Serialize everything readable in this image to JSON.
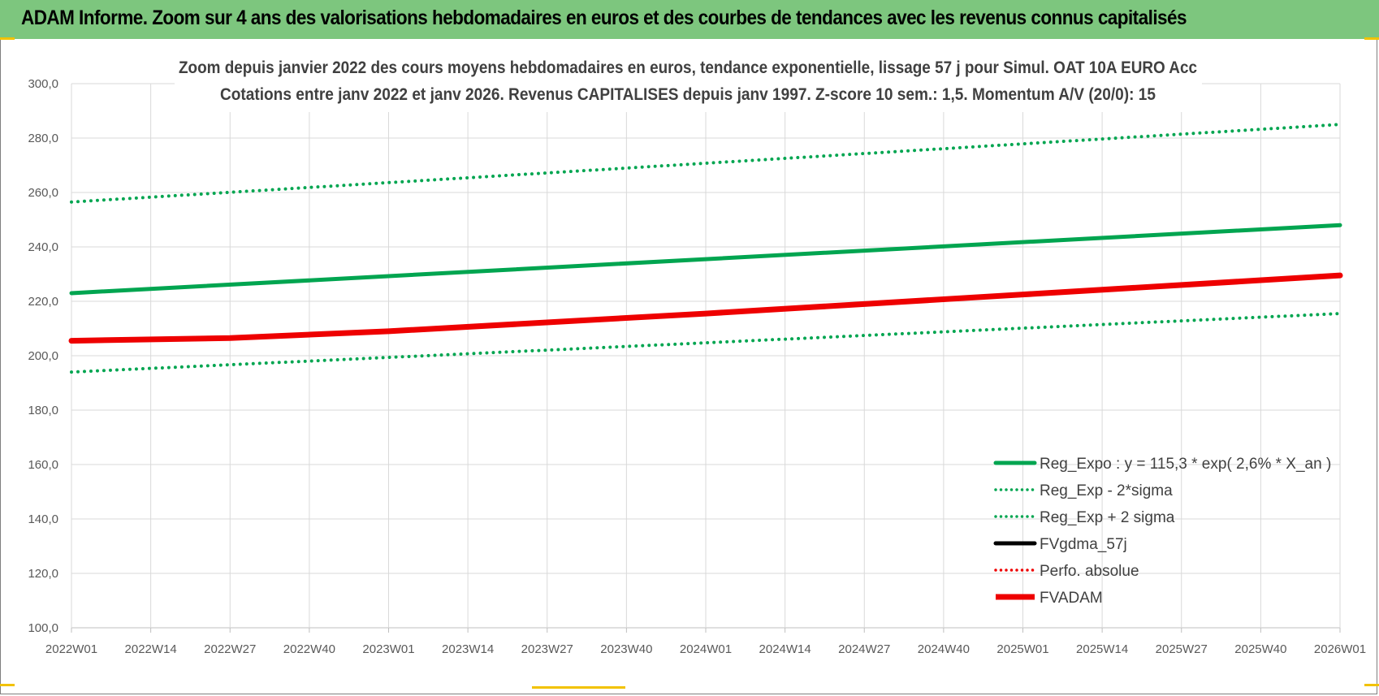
{
  "banner": {
    "title": "ADAM Informe. Zoom sur 4 ans des valorisations hebdomadaires en euros et des courbes de tendances avec les revenus connus capitalisés"
  },
  "colors": {
    "banner_bg": "#7dc67e",
    "green": "#00a550",
    "red": "#ee0000",
    "black": "#000000",
    "grid": "#d9d9d9",
    "accent": "#f2c200"
  },
  "chart_data": {
    "type": "line",
    "title": "Zoom depuis janvier 2022 des cours moyens hebdomadaires en euros, tendance exponentielle, lissage 57 j pour Simul. OAT 10A EURO Acc",
    "subtitle": "Cotations entre janv 2022 et janv 2026. Revenus CAPITALISES depuis janv 1997. Z-score 10 sem.: 1,5. Momentum A/V (20/0): 15",
    "xlabel": "",
    "ylabel": "",
    "ylim": [
      100,
      300
    ],
    "y_ticks": [
      "100,0",
      "120,0",
      "140,0",
      "160,0",
      "180,0",
      "200,0",
      "220,0",
      "240,0",
      "260,0",
      "280,0",
      "300,0"
    ],
    "x_ticks": [
      "2022W01",
      "2022W14",
      "2022W27",
      "2022W40",
      "2023W01",
      "2023W14",
      "2023W27",
      "2023W40",
      "2024W01",
      "2024W14",
      "2024W27",
      "2024W40",
      "2025W01",
      "2025W14",
      "2025W27",
      "2025W40",
      "2026W01"
    ],
    "grid": true,
    "legend_position": "bottom-right",
    "series": [
      {
        "name": "Reg_Expo : y = 115,3 * exp( 2,6% *  X_an )",
        "style": "solid",
        "color": "#00a550",
        "x": [
          "2022W01",
          "2026W01"
        ],
        "values": [
          223.0,
          248.0
        ]
      },
      {
        "name": "Reg_Exp - 2*sigma",
        "style": "dotted",
        "color": "#00a550",
        "x": [
          "2022W01",
          "2026W01"
        ],
        "values": [
          194.0,
          215.5
        ]
      },
      {
        "name": "Reg_Exp + 2 sigma",
        "style": "dotted",
        "color": "#00a550",
        "x": [
          "2022W01",
          "2026W01"
        ],
        "values": [
          256.5,
          285.0
        ]
      },
      {
        "name": "FVgdma_57j",
        "style": "solid",
        "color": "#000000",
        "x": [],
        "values": []
      },
      {
        "name": "Perfo. absolue",
        "style": "dotted",
        "color": "#ee0000",
        "x": [],
        "values": []
      },
      {
        "name": "FVADAM",
        "style": "thick",
        "color": "#ee0000",
        "x": [
          "2022W01",
          "2022W27",
          "2023W01",
          "2024W01",
          "2025W01",
          "2026W01"
        ],
        "values": [
          205.5,
          206.5,
          209.0,
          215.5,
          222.5,
          229.5
        ]
      }
    ]
  }
}
